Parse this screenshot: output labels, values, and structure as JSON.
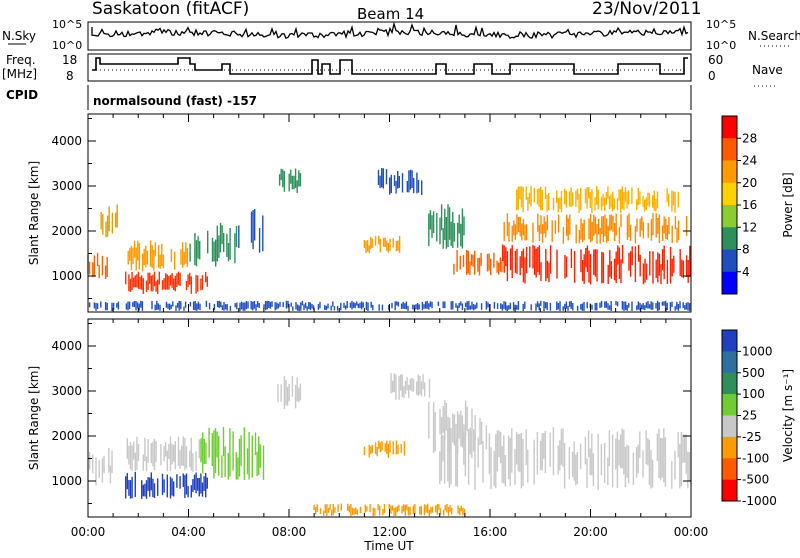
{
  "header": {
    "site": "Saskatoon (fitACF)",
    "beam": "Beam 14",
    "date": "23/Nov/2011"
  },
  "status_panel": {
    "nsky_label": "N.Sky",
    "nsky_ticks": [
      "10^5",
      "10^0"
    ],
    "nsearch_label": "N.Search",
    "nsearch_ticks": [
      "10^5",
      "10^0"
    ],
    "freq_label_line1": "Freq.",
    "freq_label_line2": "[MHz]",
    "freq_ticks": [
      "18",
      "8"
    ],
    "nave_label": "Nave",
    "nave_ticks": [
      "60",
      "0"
    ],
    "cpid_label": "CPID",
    "cpid_text": "normalsound (fast) -157"
  },
  "chart_data": [
    {
      "type": "heatmap",
      "name": "power-panel",
      "ylabel": "Slant Range [km]",
      "yticks": [
        1000,
        2000,
        3000,
        4000
      ],
      "ylim": [
        200,
        4600
      ],
      "xlim_hours": [
        0,
        24
      ],
      "colorbar": {
        "label": "Power [dB]",
        "ticks": [
          "28",
          "24",
          "20",
          "16",
          "12",
          "8",
          "4"
        ],
        "colors": [
          "#ff0000",
          "#ff5a00",
          "#ff9a00",
          "#ffd000",
          "#8ccc33",
          "#2f8f5a",
          "#1f4fbf",
          "#0000ff"
        ]
      },
      "bands": [
        {
          "t0": 0.0,
          "t1": 0.8,
          "r0": 900,
          "r1": 1600,
          "color": "#ff6000"
        },
        {
          "t0": 0.4,
          "t1": 1.3,
          "r0": 1800,
          "r1": 2600,
          "color": "#e0a000"
        },
        {
          "t0": 1.5,
          "t1": 4.8,
          "r0": 600,
          "r1": 1100,
          "color": "#ff3000"
        },
        {
          "t0": 1.6,
          "t1": 4.0,
          "r0": 1100,
          "r1": 1800,
          "color": "#ff9a00"
        },
        {
          "t0": 4.0,
          "t1": 6.0,
          "r0": 1200,
          "r1": 2200,
          "color": "#2f8f5a"
        },
        {
          "t0": 6.0,
          "t1": 7.0,
          "r0": 1400,
          "r1": 2500,
          "color": "#1f4fbf"
        },
        {
          "t0": 7.5,
          "t1": 8.5,
          "r0": 2800,
          "r1": 3400,
          "color": "#2f8f5a"
        },
        {
          "t0": 11.0,
          "t1": 12.5,
          "r0": 1500,
          "r1": 1900,
          "color": "#ff9a00"
        },
        {
          "t0": 11.5,
          "t1": 13.5,
          "r0": 2800,
          "r1": 3400,
          "color": "#1f4fbf"
        },
        {
          "t0": 13.5,
          "t1": 15.0,
          "r0": 1600,
          "r1": 2600,
          "color": "#2f8f5a"
        },
        {
          "t0": 14.5,
          "t1": 16.5,
          "r0": 1000,
          "r1": 1600,
          "color": "#ff6000"
        },
        {
          "t0": 16.5,
          "t1": 24.0,
          "r0": 800,
          "r1": 1700,
          "color": "#ff2000"
        },
        {
          "t0": 16.5,
          "t1": 24.0,
          "r0": 1700,
          "r1": 2400,
          "color": "#ff8800"
        },
        {
          "t0": 17.0,
          "t1": 23.5,
          "r0": 2400,
          "r1": 3000,
          "color": "#ffb000"
        },
        {
          "t0": 0.0,
          "t1": 24.0,
          "r0": 220,
          "r1": 450,
          "color": "#1f4fbf"
        }
      ]
    },
    {
      "type": "heatmap",
      "name": "velocity-panel",
      "ylabel": "Slant Range [km]",
      "yticks": [
        1000,
        2000,
        3000,
        4000
      ],
      "ylim": [
        200,
        4600
      ],
      "xlim_hours": [
        0,
        24
      ],
      "xticks": [
        "00:00",
        "04:00",
        "08:00",
        "12:00",
        "16:00",
        "20:00",
        "00:00"
      ],
      "xlabel": "Time UT",
      "colorbar": {
        "label": "Velocity [m s⁻¹]",
        "ticks": [
          "1000",
          "500",
          "100",
          "25",
          "-25",
          "-100",
          "-500",
          "-1000"
        ],
        "colors": [
          "#2040c0",
          "#2f6fa0",
          "#2f8f5a",
          "#6fcc33",
          "#c8c8c8",
          "#ff9a00",
          "#ff5a00",
          "#ff0000"
        ]
      },
      "bands": [
        {
          "t0": 0.0,
          "t1": 1.0,
          "r0": 900,
          "r1": 1800,
          "color": "#c8c8c8"
        },
        {
          "t0": 1.5,
          "t1": 4.8,
          "r0": 600,
          "r1": 1200,
          "color": "#2040c0"
        },
        {
          "t0": 1.5,
          "t1": 4.5,
          "r0": 1200,
          "r1": 2000,
          "color": "#c8c8c8"
        },
        {
          "t0": 4.5,
          "t1": 7.0,
          "r0": 1000,
          "r1": 2200,
          "color": "#6fcc33"
        },
        {
          "t0": 7.5,
          "t1": 8.5,
          "r0": 2600,
          "r1": 3400,
          "color": "#c8c8c8"
        },
        {
          "t0": 11.0,
          "t1": 12.6,
          "r0": 1500,
          "r1": 1900,
          "color": "#ff9a00"
        },
        {
          "t0": 12.0,
          "t1": 13.6,
          "r0": 2800,
          "r1": 3400,
          "color": "#c8c8c8"
        },
        {
          "t0": 13.5,
          "t1": 16.0,
          "r0": 1600,
          "r1": 2800,
          "color": "#c8c8c8"
        },
        {
          "t0": 14.0,
          "t1": 24.0,
          "r0": 800,
          "r1": 2200,
          "color": "#c8c8c8"
        },
        {
          "t0": 9.0,
          "t1": 15.0,
          "r0": 220,
          "r1": 500,
          "color": "#ff9a00"
        }
      ]
    }
  ]
}
